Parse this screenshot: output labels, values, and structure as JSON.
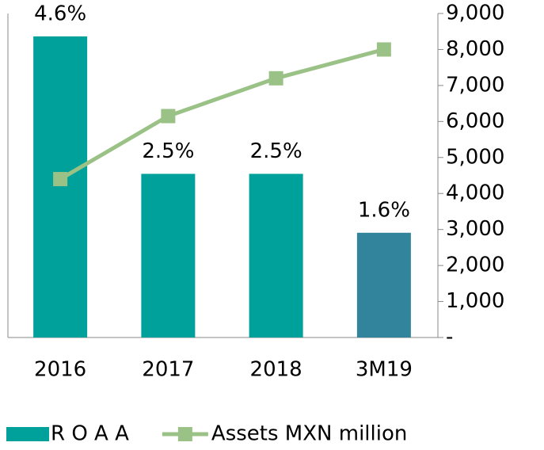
{
  "chart_data": {
    "type": "bar_line",
    "categories": [
      "2016",
      "2017",
      "2018",
      "3M19"
    ],
    "series": [
      {
        "name": "R O A A",
        "type": "bar",
        "colors": [
          "#00A19A",
          "#00A19A",
          "#00A19A",
          "#31849B"
        ],
        "color": "#00A19A",
        "values": [
          4.6,
          2.5,
          2.5,
          1.6
        ],
        "value_labels": [
          "4.6%",
          "2.5%",
          "2.5%",
          "1.6%"
        ]
      },
      {
        "name": "Assets MXN million",
        "type": "line",
        "axis": "y2",
        "color": "#9BC286",
        "values": [
          4400,
          6150,
          7200,
          8000
        ]
      }
    ],
    "ylim": [
      0,
      4.95
    ],
    "y2lim": [
      0,
      9000
    ],
    "y2ticks": [
      {
        "value": 0,
        "label": "-"
      },
      {
        "value": 1000,
        "label": "1,000"
      },
      {
        "value": 2000,
        "label": "2,000"
      },
      {
        "value": 3000,
        "label": "3,000"
      },
      {
        "value": 4000,
        "label": "4,000"
      },
      {
        "value": 5000,
        "label": "5,000"
      },
      {
        "value": 6000,
        "label": "6,000"
      },
      {
        "value": 7000,
        "label": "7,000"
      },
      {
        "value": 8000,
        "label": "8,000"
      },
      {
        "value": 9000,
        "label": "9,000"
      }
    ],
    "legend": "bottom"
  }
}
